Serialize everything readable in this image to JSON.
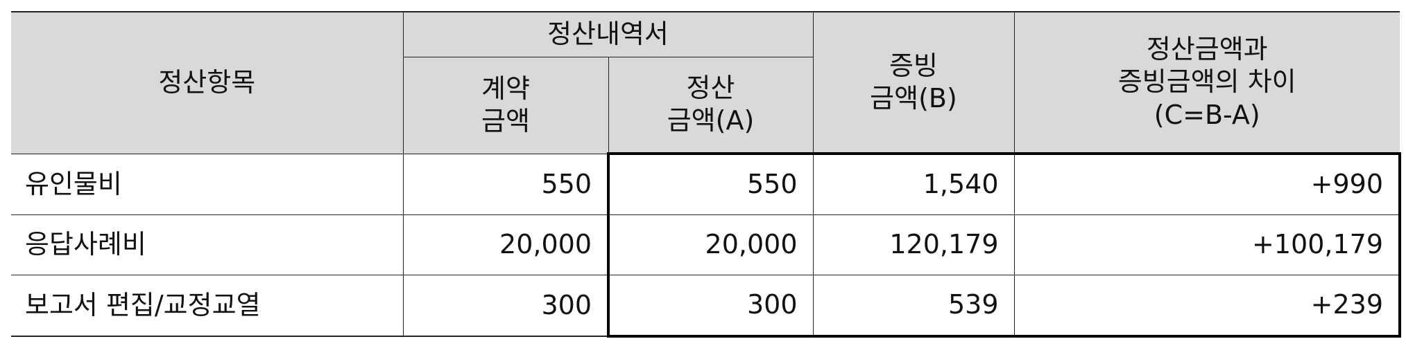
{
  "table": {
    "header": {
      "item": "정산항목",
      "statement": "정산내역서",
      "contract": "계약\n금액",
      "settled": "정산\n금액(A)",
      "evidence": "증빙\n금액(B)",
      "difference": "정산금액과\n증빙금액의 차이\n(C=B-A)"
    },
    "rows": [
      [
        "유인물비",
        "550",
        "550",
        "1,540",
        "+990"
      ],
      [
        "응답사례비",
        "20,000",
        "20,000",
        "120,179",
        "+100,179"
      ],
      [
        "보고서  편집/교정교열",
        "300",
        "300",
        "539",
        "+239"
      ]
    ]
  }
}
